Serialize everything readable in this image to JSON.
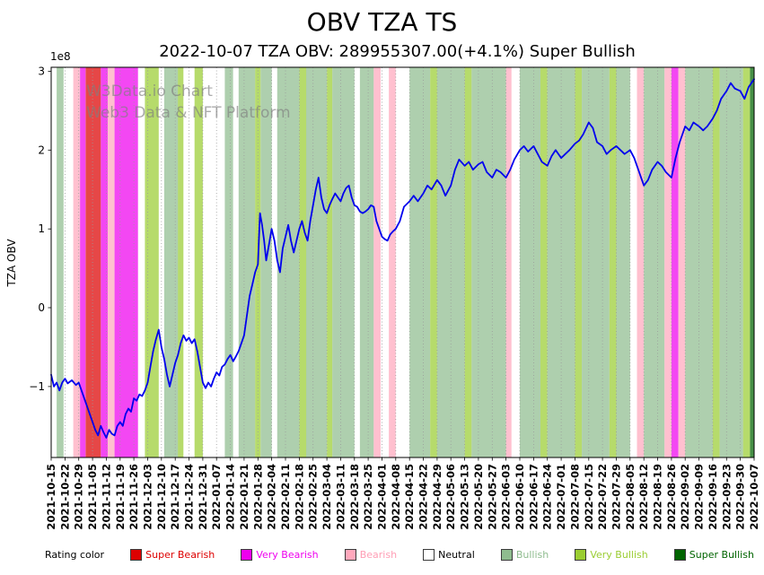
{
  "chart": {
    "title": "OBV TZA TS",
    "subtitle": "2022-10-07 TZA OBV: 289955307.00(+4.1%) Super Bullish",
    "ylabel": "TZA OBV",
    "scale_label": "1e8",
    "watermark_line1": "W3Data.io Chart",
    "watermark_line2": "Web3 Data & NFT Platform"
  },
  "legend": {
    "title": "Rating color",
    "items": [
      {
        "key": "super_bearish",
        "label": "Super Bearish",
        "color": "#dd0000",
        "text_color": "#dd0000"
      },
      {
        "key": "very_bearish",
        "label": "Very Bearish",
        "color": "#ee00ee",
        "text_color": "#ee00ee"
      },
      {
        "key": "bearish",
        "label": "Bearish",
        "color": "#ffa8bc",
        "text_color": "#ff9eb5"
      },
      {
        "key": "neutral",
        "label": "Neutral",
        "color": "#ffffff",
        "text_color": "#000000"
      },
      {
        "key": "bullish",
        "label": "Bullish",
        "color": "#8fbc8f",
        "text_color": "#8fbc8f"
      },
      {
        "key": "very_bullish",
        "label": "Very Bullish",
        "color": "#9acd32",
        "text_color": "#9acd32"
      },
      {
        "key": "super_bullish",
        "label": "Super Bullish",
        "color": "#006400",
        "text_color": "#006400"
      }
    ]
  },
  "chart_data": {
    "type": "line",
    "title": "OBV TZA TS",
    "subtitle": "2022-10-07 TZA OBV: 289955307.00(+4.1%) Super Bullish",
    "ylabel": "TZA OBV",
    "y_unit": "1e8",
    "ylim": [
      -1.9,
      3.05
    ],
    "y_ticks": [
      {
        "v": -1,
        "label": "−1"
      },
      {
        "v": 0,
        "label": "0"
      },
      {
        "v": 1,
        "label": "1"
      },
      {
        "v": 2,
        "label": "2"
      },
      {
        "v": 3,
        "label": "3"
      }
    ],
    "grid": "vertical-dotted",
    "legend_position": "bottom",
    "x_scale": "index into x_tick_labels (weekly)",
    "x_tick_labels": [
      "2021-10-15",
      "2021-10-22",
      "2021-10-29",
      "2021-11-05",
      "2021-11-12",
      "2021-11-19",
      "2021-11-26",
      "2021-12-03",
      "2021-12-10",
      "2021-12-17",
      "2021-12-24",
      "2021-12-31",
      "2022-01-07",
      "2022-01-14",
      "2022-01-21",
      "2022-01-28",
      "2022-02-04",
      "2022-02-11",
      "2022-02-18",
      "2022-02-25",
      "2022-03-04",
      "2022-03-11",
      "2022-03-18",
      "2022-03-25",
      "2022-04-01",
      "2022-04-08",
      "2022-04-15",
      "2022-04-22",
      "2022-04-29",
      "2022-05-06",
      "2022-05-13",
      "2022-05-20",
      "2022-05-27",
      "2022-06-03",
      "2022-06-10",
      "2022-06-17",
      "2022-06-24",
      "2022-07-01",
      "2022-07-08",
      "2022-07-15",
      "2022-07-22",
      "2022-07-29",
      "2022-08-05",
      "2022-08-12",
      "2022-08-19",
      "2022-08-26",
      "2022-09-02",
      "2022-09-09",
      "2022-09-16",
      "2022-09-23",
      "2022-09-30",
      "2022-10-07"
    ],
    "series": [
      {
        "name": "TZA OBV",
        "color": "#0000ee",
        "points": [
          [
            0,
            -0.85
          ],
          [
            0.2,
            -1.0
          ],
          [
            0.4,
            -0.95
          ],
          [
            0.6,
            -1.05
          ],
          [
            0.8,
            -0.95
          ],
          [
            1,
            -0.9
          ],
          [
            1.2,
            -0.96
          ],
          [
            1.5,
            -0.92
          ],
          [
            1.8,
            -0.98
          ],
          [
            2,
            -0.95
          ],
          [
            2.2,
            -1.05
          ],
          [
            2.5,
            -1.2
          ],
          [
            2.8,
            -1.35
          ],
          [
            3,
            -1.45
          ],
          [
            3.2,
            -1.55
          ],
          [
            3.4,
            -1.62
          ],
          [
            3.6,
            -1.5
          ],
          [
            3.8,
            -1.58
          ],
          [
            4,
            -1.65
          ],
          [
            4.2,
            -1.55
          ],
          [
            4.4,
            -1.6
          ],
          [
            4.6,
            -1.62
          ],
          [
            4.8,
            -1.5
          ],
          [
            5,
            -1.45
          ],
          [
            5.2,
            -1.5
          ],
          [
            5.4,
            -1.35
          ],
          [
            5.6,
            -1.28
          ],
          [
            5.8,
            -1.32
          ],
          [
            6,
            -1.15
          ],
          [
            6.2,
            -1.18
          ],
          [
            6.4,
            -1.1
          ],
          [
            6.6,
            -1.12
          ],
          [
            6.8,
            -1.05
          ],
          [
            7,
            -0.95
          ],
          [
            7.2,
            -0.75
          ],
          [
            7.4,
            -0.55
          ],
          [
            7.6,
            -0.4
          ],
          [
            7.8,
            -0.28
          ],
          [
            8,
            -0.5
          ],
          [
            8.2,
            -0.65
          ],
          [
            8.4,
            -0.85
          ],
          [
            8.6,
            -1.0
          ],
          [
            8.8,
            -0.85
          ],
          [
            9,
            -0.7
          ],
          [
            9.2,
            -0.6
          ],
          [
            9.4,
            -0.45
          ],
          [
            9.6,
            -0.35
          ],
          [
            9.8,
            -0.42
          ],
          [
            10,
            -0.38
          ],
          [
            10.2,
            -0.45
          ],
          [
            10.4,
            -0.4
          ],
          [
            10.6,
            -0.55
          ],
          [
            10.8,
            -0.75
          ],
          [
            11,
            -0.95
          ],
          [
            11.2,
            -1.02
          ],
          [
            11.4,
            -0.95
          ],
          [
            11.6,
            -1.0
          ],
          [
            11.8,
            -0.9
          ],
          [
            12,
            -0.82
          ],
          [
            12.2,
            -0.86
          ],
          [
            12.4,
            -0.75
          ],
          [
            12.6,
            -0.72
          ],
          [
            12.8,
            -0.65
          ],
          [
            13,
            -0.6
          ],
          [
            13.2,
            -0.68
          ],
          [
            13.4,
            -0.62
          ],
          [
            13.6,
            -0.55
          ],
          [
            13.8,
            -0.45
          ],
          [
            14,
            -0.35
          ],
          [
            14.2,
            -0.1
          ],
          [
            14.4,
            0.15
          ],
          [
            14.6,
            0.3
          ],
          [
            14.8,
            0.45
          ],
          [
            15,
            0.55
          ],
          [
            15.15,
            1.2
          ],
          [
            15.3,
            1.05
          ],
          [
            15.45,
            0.85
          ],
          [
            15.6,
            0.6
          ],
          [
            15.8,
            0.8
          ],
          [
            16,
            1.0
          ],
          [
            16.2,
            0.85
          ],
          [
            16.4,
            0.6
          ],
          [
            16.6,
            0.45
          ],
          [
            16.8,
            0.75
          ],
          [
            17,
            0.9
          ],
          [
            17.2,
            1.05
          ],
          [
            17.4,
            0.85
          ],
          [
            17.6,
            0.7
          ],
          [
            17.8,
            0.85
          ],
          [
            18,
            1.0
          ],
          [
            18.2,
            1.1
          ],
          [
            18.4,
            0.95
          ],
          [
            18.6,
            0.85
          ],
          [
            18.8,
            1.1
          ],
          [
            19,
            1.3
          ],
          [
            19.2,
            1.5
          ],
          [
            19.4,
            1.65
          ],
          [
            19.6,
            1.4
          ],
          [
            19.8,
            1.25
          ],
          [
            20,
            1.2
          ],
          [
            20.2,
            1.3
          ],
          [
            20.4,
            1.38
          ],
          [
            20.6,
            1.45
          ],
          [
            20.8,
            1.4
          ],
          [
            21,
            1.35
          ],
          [
            21.2,
            1.45
          ],
          [
            21.4,
            1.52
          ],
          [
            21.6,
            1.55
          ],
          [
            21.8,
            1.4
          ],
          [
            22,
            1.3
          ],
          [
            22.2,
            1.28
          ],
          [
            22.4,
            1.22
          ],
          [
            22.6,
            1.2
          ],
          [
            22.8,
            1.22
          ],
          [
            23,
            1.25
          ],
          [
            23.2,
            1.3
          ],
          [
            23.4,
            1.28
          ],
          [
            23.6,
            1.1
          ],
          [
            23.8,
            1.0
          ],
          [
            24,
            0.9
          ],
          [
            24.2,
            0.87
          ],
          [
            24.4,
            0.85
          ],
          [
            24.6,
            0.93
          ],
          [
            24.8,
            0.97
          ],
          [
            25,
            1.0
          ],
          [
            25.3,
            1.1
          ],
          [
            25.6,
            1.28
          ],
          [
            26,
            1.35
          ],
          [
            26.3,
            1.42
          ],
          [
            26.6,
            1.35
          ],
          [
            27,
            1.45
          ],
          [
            27.3,
            1.55
          ],
          [
            27.6,
            1.5
          ],
          [
            28,
            1.62
          ],
          [
            28.3,
            1.55
          ],
          [
            28.6,
            1.42
          ],
          [
            29,
            1.55
          ],
          [
            29.3,
            1.75
          ],
          [
            29.6,
            1.88
          ],
          [
            30,
            1.8
          ],
          [
            30.3,
            1.85
          ],
          [
            30.6,
            1.75
          ],
          [
            31,
            1.82
          ],
          [
            31.3,
            1.85
          ],
          [
            31.6,
            1.72
          ],
          [
            32,
            1.65
          ],
          [
            32.3,
            1.75
          ],
          [
            32.6,
            1.72
          ],
          [
            33,
            1.65
          ],
          [
            33.3,
            1.75
          ],
          [
            33.6,
            1.88
          ],
          [
            34,
            2.0
          ],
          [
            34.3,
            2.05
          ],
          [
            34.6,
            1.98
          ],
          [
            35,
            2.05
          ],
          [
            35.3,
            1.95
          ],
          [
            35.6,
            1.85
          ],
          [
            36,
            1.8
          ],
          [
            36.3,
            1.92
          ],
          [
            36.6,
            2.0
          ],
          [
            37,
            1.9
          ],
          [
            37.3,
            1.95
          ],
          [
            37.6,
            2.0
          ],
          [
            38,
            2.08
          ],
          [
            38.3,
            2.12
          ],
          [
            38.6,
            2.2
          ],
          [
            39,
            2.35
          ],
          [
            39.3,
            2.28
          ],
          [
            39.6,
            2.1
          ],
          [
            40,
            2.05
          ],
          [
            40.3,
            1.95
          ],
          [
            40.6,
            2.0
          ],
          [
            41,
            2.05
          ],
          [
            41.3,
            2.0
          ],
          [
            41.6,
            1.95
          ],
          [
            42,
            2.0
          ],
          [
            42.3,
            1.9
          ],
          [
            42.6,
            1.75
          ],
          [
            43,
            1.55
          ],
          [
            43.3,
            1.62
          ],
          [
            43.6,
            1.75
          ],
          [
            44,
            1.85
          ],
          [
            44.3,
            1.8
          ],
          [
            44.6,
            1.72
          ],
          [
            45,
            1.65
          ],
          [
            45.3,
            1.9
          ],
          [
            45.6,
            2.1
          ],
          [
            46,
            2.3
          ],
          [
            46.3,
            2.25
          ],
          [
            46.6,
            2.35
          ],
          [
            47,
            2.3
          ],
          [
            47.3,
            2.25
          ],
          [
            47.6,
            2.3
          ],
          [
            48,
            2.4
          ],
          [
            48.3,
            2.5
          ],
          [
            48.6,
            2.65
          ],
          [
            49,
            2.75
          ],
          [
            49.3,
            2.85
          ],
          [
            49.6,
            2.78
          ],
          [
            50,
            2.75
          ],
          [
            50.3,
            2.65
          ],
          [
            50.6,
            2.8
          ],
          [
            51,
            2.9
          ]
        ]
      }
    ],
    "band_opacity": 0.72,
    "bands": [
      [
        0,
        0.4,
        "neutral"
      ],
      [
        0.4,
        0.9,
        "bullish"
      ],
      [
        0.9,
        1.6,
        "neutral"
      ],
      [
        1.6,
        2.1,
        "bearish"
      ],
      [
        2.1,
        2.5,
        "very_bearish"
      ],
      [
        2.5,
        3.6,
        "super_bearish"
      ],
      [
        3.6,
        4.1,
        "very_bearish"
      ],
      [
        4.1,
        4.6,
        "bearish"
      ],
      [
        4.6,
        6.3,
        "very_bearish"
      ],
      [
        6.3,
        6.8,
        "neutral"
      ],
      [
        6.8,
        7.8,
        "very_bullish"
      ],
      [
        7.8,
        8.2,
        "neutral"
      ],
      [
        8.2,
        9.2,
        "bullish"
      ],
      [
        9.2,
        9.6,
        "very_bullish"
      ],
      [
        9.6,
        10.4,
        "neutral"
      ],
      [
        10.4,
        11,
        "very_bullish"
      ],
      [
        11,
        12.6,
        "neutral"
      ],
      [
        12.6,
        13.2,
        "bullish"
      ],
      [
        13.2,
        13.6,
        "neutral"
      ],
      [
        13.6,
        14.8,
        "bullish"
      ],
      [
        14.8,
        15.2,
        "very_bullish"
      ],
      [
        15.2,
        16,
        "bullish"
      ],
      [
        16,
        16.4,
        "neutral"
      ],
      [
        16.4,
        18,
        "bullish"
      ],
      [
        18,
        18.5,
        "very_bullish"
      ],
      [
        18.5,
        20,
        "bullish"
      ],
      [
        20,
        20.4,
        "very_bullish"
      ],
      [
        20.4,
        22,
        "bullish"
      ],
      [
        22,
        22.4,
        "neutral"
      ],
      [
        22.4,
        23.4,
        "bullish"
      ],
      [
        23.4,
        23.9,
        "bearish"
      ],
      [
        23.9,
        24.5,
        "neutral"
      ],
      [
        24.5,
        25,
        "bearish"
      ],
      [
        25,
        26,
        "neutral"
      ],
      [
        26,
        27.5,
        "bullish"
      ],
      [
        27.5,
        28,
        "very_bullish"
      ],
      [
        28,
        30,
        "bullish"
      ],
      [
        30,
        30.5,
        "very_bullish"
      ],
      [
        30.5,
        33,
        "bullish"
      ],
      [
        33,
        33.4,
        "bearish"
      ],
      [
        33.4,
        34,
        "neutral"
      ],
      [
        34,
        35.5,
        "bullish"
      ],
      [
        35.5,
        36,
        "very_bullish"
      ],
      [
        36,
        38,
        "bullish"
      ],
      [
        38,
        38.5,
        "very_bullish"
      ],
      [
        38.5,
        40.5,
        "bullish"
      ],
      [
        40.5,
        41,
        "very_bullish"
      ],
      [
        41,
        42,
        "bullish"
      ],
      [
        42,
        42.5,
        "neutral"
      ],
      [
        42.5,
        43,
        "bearish"
      ],
      [
        43,
        44.5,
        "bullish"
      ],
      [
        44.5,
        45,
        "bearish"
      ],
      [
        45,
        45.5,
        "very_bearish"
      ],
      [
        45.5,
        46,
        "bearish"
      ],
      [
        46,
        48,
        "bullish"
      ],
      [
        48,
        48.5,
        "very_bullish"
      ],
      [
        48.5,
        50.2,
        "bullish"
      ],
      [
        50.2,
        50.7,
        "very_bullish"
      ],
      [
        50.7,
        51,
        "super_bullish"
      ]
    ]
  }
}
